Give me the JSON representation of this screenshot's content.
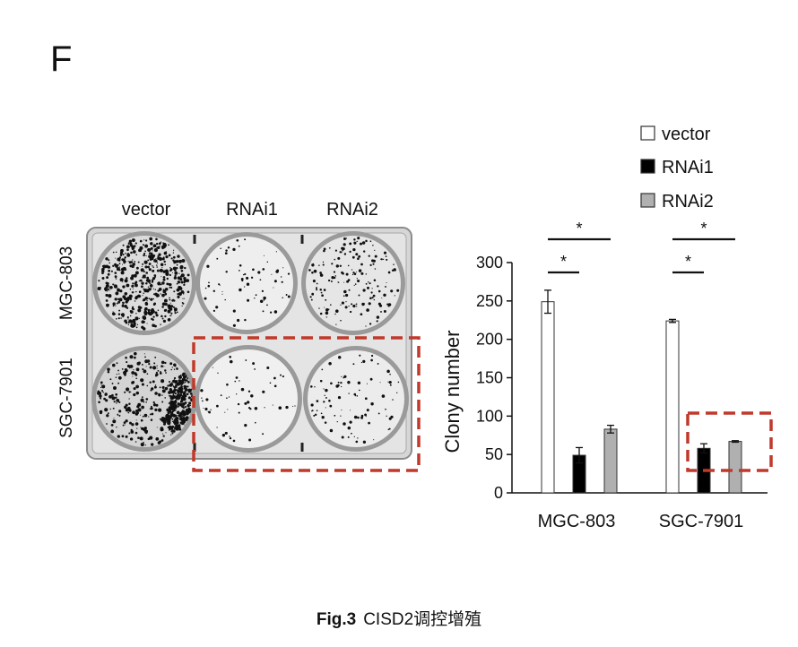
{
  "panel_label": "F",
  "plate": {
    "column_labels": [
      "vector",
      "RNAi1",
      "RNAi2"
    ],
    "row_labels": [
      "MGC-803",
      "SGC-7901"
    ]
  },
  "caption": {
    "fig_label": "Fig.3",
    "text": "CISD2调控增殖"
  },
  "colors": {
    "highlight": "#c0392b",
    "vector": "#ffffff",
    "RNAi1": "#000000",
    "RNAi2": "#b0b0b0"
  },
  "chart_data": {
    "type": "bar",
    "categories": [
      "MGC-803",
      "SGC-7901"
    ],
    "series": [
      {
        "name": "vector",
        "values": [
          249,
          224
        ],
        "errors": [
          15,
          2
        ]
      },
      {
        "name": "RNAi1",
        "values": [
          49,
          58
        ],
        "errors": [
          10,
          6
        ]
      },
      {
        "name": "RNAi2",
        "values": [
          83,
          67
        ],
        "errors": [
          5,
          1
        ]
      }
    ],
    "ylabel": "Clony number",
    "xlabel": "",
    "ylim": [
      0,
      300
    ],
    "yticks": [
      0,
      50,
      100,
      150,
      200,
      250,
      300
    ],
    "legend": {
      "position": "top-right",
      "entries": [
        "vector",
        "RNAi1",
        "RNAi2"
      ]
    },
    "significance": [
      {
        "category": "MGC-803",
        "from": "vector",
        "to": "RNAi1",
        "label": "*"
      },
      {
        "category": "MGC-803",
        "from": "vector",
        "to": "RNAi2",
        "label": "*"
      },
      {
        "category": "SGC-7901",
        "from": "vector",
        "to": "RNAi1",
        "label": "*"
      },
      {
        "category": "SGC-7901",
        "from": "vector",
        "to": "RNAi2",
        "label": "*"
      }
    ],
    "highlight": {
      "category": "SGC-7901",
      "series": [
        "RNAi1",
        "RNAi2"
      ]
    },
    "grid": false
  }
}
